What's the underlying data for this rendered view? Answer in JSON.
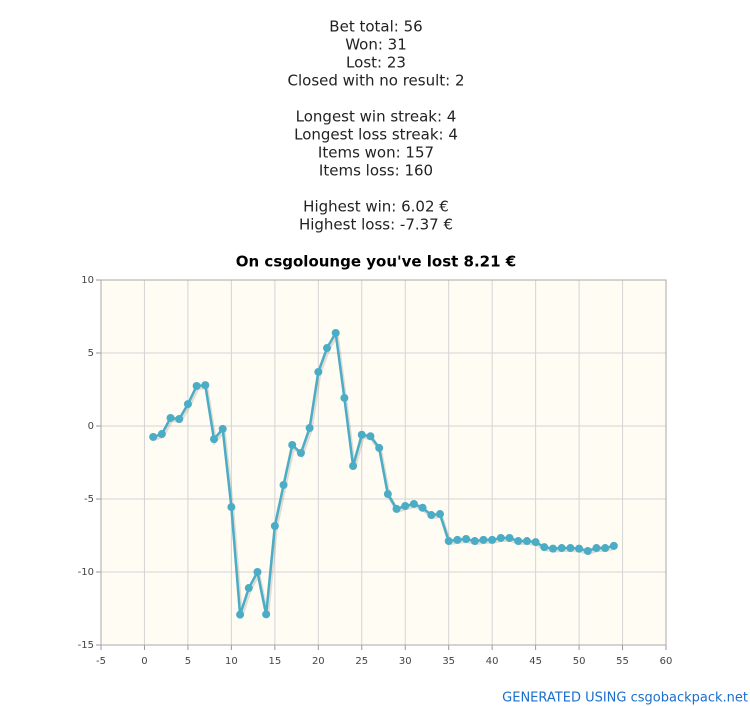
{
  "stats": [
    [
      "Bet total: 56",
      "Won: 31",
      "Lost: 23",
      "Closed with no result: 2"
    ],
    [
      "Longest win streak: 4",
      "Longest loss streak: 4",
      "Items won: 157",
      "Items loss: 160"
    ],
    [
      "Highest win: 6.02 €",
      "Highest loss: -7.37 €"
    ]
  ],
  "chart_data": {
    "type": "line",
    "title": "On csgolounge you've lost 8.21 €",
    "x": [
      1,
      2,
      3,
      4,
      5,
      6,
      7,
      8,
      9,
      10,
      11,
      12,
      13,
      14,
      15,
      16,
      17,
      18,
      19,
      20,
      21,
      22,
      23,
      24,
      25,
      26,
      27,
      28,
      29,
      30,
      31,
      32,
      33,
      34,
      35,
      36,
      37,
      38,
      39,
      40,
      41,
      42,
      43,
      44,
      45,
      46,
      47,
      48,
      49,
      50,
      51,
      52,
      53,
      54
    ],
    "series": [
      {
        "color": "#4bacc6",
        "values": [
          -0.75,
          -0.55,
          0.55,
          0.48,
          1.5,
          2.74,
          2.8,
          -0.9,
          -0.2,
          -5.55,
          -12.92,
          -11.1,
          -10.0,
          -12.9,
          -6.85,
          -4.04,
          -1.3,
          -1.85,
          -0.14,
          3.7,
          5.34,
          6.37,
          1.92,
          -2.74,
          -0.6,
          -0.7,
          -1.5,
          -4.66,
          -5.68,
          -5.48,
          -5.34,
          -5.6,
          -6.1,
          -6.03,
          -7.88,
          -7.8,
          -7.74,
          -7.88,
          -7.8,
          -7.8,
          -7.67,
          -7.67,
          -7.88,
          -7.88,
          -7.95,
          -8.3,
          -8.4,
          -8.36,
          -8.36,
          -8.4,
          -8.56,
          -8.36,
          -8.36,
          -8.21
        ]
      }
    ],
    "xlim": [
      -5,
      60
    ],
    "xticks": [
      -5,
      0,
      5,
      10,
      15,
      20,
      25,
      30,
      35,
      40,
      45,
      50,
      55,
      60
    ],
    "ylim": [
      -15,
      10
    ],
    "yticks": [
      -15,
      -10,
      -5,
      0,
      5,
      10
    ],
    "grid": true
  },
  "footer": "GENERATED USING csgobackpack.net"
}
